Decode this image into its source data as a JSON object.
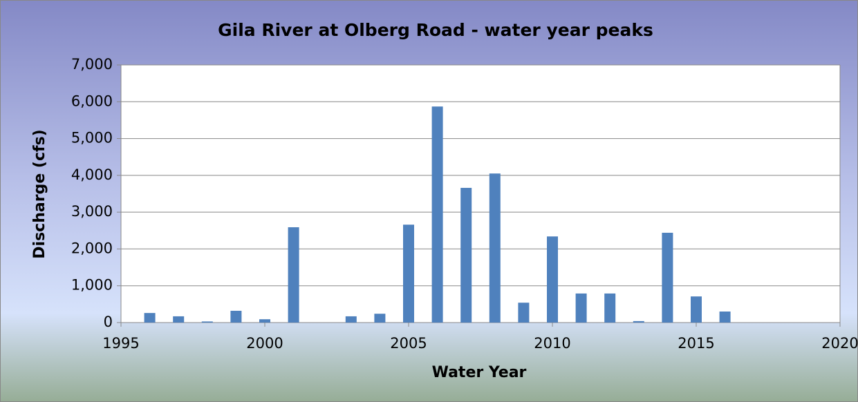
{
  "chart_data": {
    "type": "bar",
    "title": "Gila River at Olberg Road - water year peaks",
    "x_label": "Water Year",
    "y_label": "Discharge (cfs)",
    "x": [
      1996,
      1997,
      1998,
      1999,
      2000,
      2001,
      2003,
      2004,
      2005,
      2006,
      2007,
      2008,
      2009,
      2010,
      2011,
      2012,
      2013,
      2014,
      2015,
      2016
    ],
    "values": [
      260,
      170,
      30,
      320,
      90,
      2590,
      170,
      240,
      2660,
      5870,
      3660,
      4050,
      540,
      2340,
      790,
      790,
      40,
      2440,
      710,
      300
    ],
    "color": "#4f81bd",
    "xlim": [
      1995,
      2020
    ],
    "xticks": [
      1995,
      2000,
      2005,
      2010,
      2015,
      2020
    ],
    "ylim": [
      0,
      7000
    ],
    "yticks": [
      0,
      {
        "value": 1000,
        "label": "1,000"
      },
      {
        "value": 2000,
        "label": "2,000"
      },
      {
        "value": 3000,
        "label": "3,000"
      },
      {
        "value": 4000,
        "label": "4,000"
      },
      {
        "value": 5000,
        "label": "5,000"
      },
      {
        "value": 6000,
        "label": "6,000"
      },
      {
        "value": 7000,
        "label": "7,000"
      }
    ],
    "grid": true
  }
}
